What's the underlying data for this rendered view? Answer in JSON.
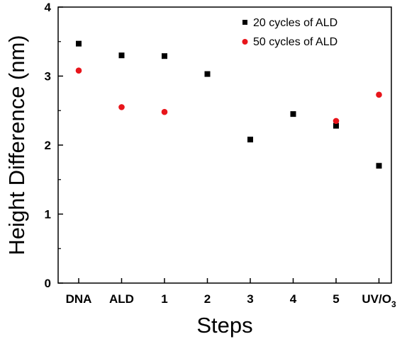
{
  "chart_data": {
    "type": "scatter",
    "categories": [
      "DNA",
      "ALD",
      "1",
      "2",
      "3",
      "4",
      "5",
      "UV/O3"
    ],
    "category_labels": [
      {
        "main": "DNA",
        "sub": ""
      },
      {
        "main": "ALD",
        "sub": ""
      },
      {
        "main": "1",
        "sub": ""
      },
      {
        "main": "2",
        "sub": ""
      },
      {
        "main": "3",
        "sub": ""
      },
      {
        "main": "4",
        "sub": ""
      },
      {
        "main": "5",
        "sub": ""
      },
      {
        "main": "UV/O",
        "sub": "3"
      }
    ],
    "series": [
      {
        "name": "20 cycles of ALD",
        "marker": "square",
        "color": "#000000",
        "values": [
          3.47,
          3.3,
          3.29,
          3.03,
          2.08,
          2.45,
          2.28,
          1.7
        ]
      },
      {
        "name": "50 cycles of ALD",
        "marker": "circle",
        "color": "#e8151b",
        "values": [
          3.08,
          2.55,
          2.48,
          null,
          null,
          null,
          2.35,
          2.73
        ]
      }
    ],
    "xlabel": "Steps",
    "ylabel": "Height Difference (nm)",
    "ylim": [
      0,
      4
    ],
    "yticks": [
      0,
      1,
      2,
      3,
      4
    ],
    "grid": false,
    "legend_position": "top-right"
  }
}
